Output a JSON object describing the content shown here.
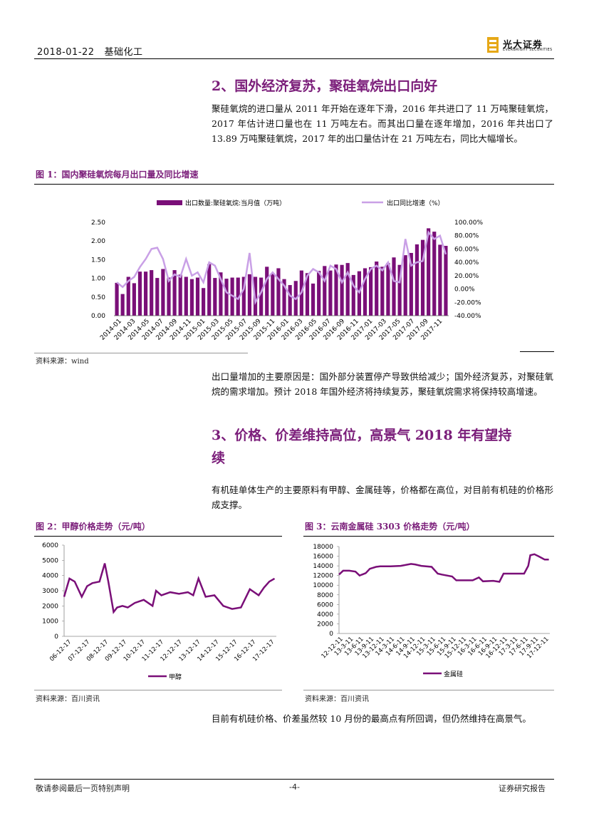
{
  "header": {
    "date": "2018-01-22",
    "sector": "基础化工",
    "logo_cn": "光大证券",
    "logo_en": "EVERBRIGHT SECURITIES"
  },
  "section2": {
    "title": "2、国外经济复苏，聚硅氧烷出口向好",
    "para": "聚硅氧烷的进口量从 2011 年开始在逐年下滑，2016 年共进口了 11 万吨聚硅氧烷，2017 年估计进口量也在 11 万吨左右。而其出口量在逐年增加，2016 年共出口了 13.89 万吨聚硅氧烷，2017 年的出口量估计在 21 万吨左右，同比大幅增长。"
  },
  "fig1": {
    "title": "图 1：国内聚硅氧烷每月出口量及同比增速",
    "source": "资料来源：wind"
  },
  "para_after_fig1": "出口量增加的主要原因是：国外部分装置停产导致供给减少；国外经济复苏，对聚硅氧烷的需求增加。预计 2018 年国外经济将持续复苏，聚硅氧烷需求将保持较高增速。",
  "section3": {
    "title_line1": "3、价格、价差维持高位，高景气 2018 年有望持",
    "title_line2": "续",
    "para": "有机硅单体生产的主要原料有甲醇、金属硅等，价格都在高位，对目前有机硅的价格形成支撑。"
  },
  "fig2": {
    "title": "图 2：甲醇价格走势（元/吨）",
    "source": "资料来源：百川资讯"
  },
  "fig3": {
    "title": "图 3：云南金属硅 3303 价格走势（元/吨）",
    "source": "资料来源：百川资讯"
  },
  "para_end": "目前有机硅价格、价差虽然较 10 月份的最高点有所回调，但仍然维持在高景气。",
  "footer": {
    "left": "敬请参阅最后一页特别声明",
    "center": "-4-",
    "right": "证券研究报告"
  },
  "colors": {
    "accent": "#7b1e7a",
    "bar": "#7a0f78",
    "line": "#c9a0e6"
  },
  "chart_data": [
    {
      "type": "bar+line",
      "legend": [
        "出口数量:聚硅氧烷:当月值（万吨）",
        "出口同比增速（%）"
      ],
      "left_ylim": [
        0,
        2.5
      ],
      "left_ticks": [
        "0.00",
        "0.50",
        "1.00",
        "1.50",
        "2.00",
        "2.50"
      ],
      "right_ylim": [
        -40,
        100
      ],
      "right_ticks": [
        "-40.00%",
        "-20.00%",
        "0.00%",
        "20.00%",
        "40.00%",
        "60.00%",
        "80.00%",
        "100.00%"
      ],
      "x_tick_labels": [
        "2014-01",
        "2014-03",
        "2014-05",
        "2014-07",
        "2014-09",
        "2014-11",
        "2015-01",
        "2015-03",
        "2015-05",
        "2015-07",
        "2015-09",
        "2015-11",
        "2016-01",
        "2016-03",
        "2016-05",
        "2016-07",
        "2016-09",
        "2016-11",
        "2017-01",
        "2017-03",
        "2017-05",
        "2017-07",
        "2017-09",
        "2017-11"
      ],
      "bar_values": [
        0.88,
        0.58,
        1.04,
        0.87,
        1.18,
        1.18,
        1.22,
        1.01,
        1.25,
        1.02,
        1.22,
        1.1,
        1.04,
        0.98,
        1.02,
        0.74,
        1.38,
        1.01,
        1.16,
        0.99,
        1.02,
        1.02,
        1.04,
        1.11,
        1.04,
        1.02,
        1.31,
        1.14,
        1.27,
        0.98,
        0.82,
        0.93,
        1.21,
        1.14,
        0.86,
        1.2,
        1.33,
        1.21,
        1.37,
        1.36,
        1.41,
        1.09,
        1.19,
        1.27,
        1.3,
        1.45,
        1.31,
        1.41,
        1.56,
        1.36,
        1.62,
        1.68,
        1.91,
        2.03,
        2.34,
        2.25,
        1.9,
        1.87
      ],
      "line_values": [
        10,
        3,
        12,
        18,
        33,
        45,
        60,
        62,
        45,
        12,
        22,
        18,
        45,
        20,
        25,
        10,
        40,
        35,
        15,
        -5,
        -10,
        -15,
        0,
        54,
        -20,
        -5,
        15,
        25,
        15,
        5,
        -10,
        -15,
        -5,
        20,
        30,
        25,
        12,
        35,
        30,
        10,
        25,
        5,
        -5,
        15,
        30,
        35,
        28,
        40,
        12,
        10,
        75,
        35,
        40,
        42,
        85,
        75,
        80,
        52
      ],
      "line_axis": "right"
    },
    {
      "type": "line",
      "title": "图 2：甲醇价格走势（元/吨）",
      "legend": [
        "甲醇"
      ],
      "ylim": [
        0,
        6000
      ],
      "y_ticks": [
        "0",
        "1000",
        "2000",
        "3000",
        "4000",
        "5000",
        "6000"
      ],
      "x_tick_labels": [
        "06-12-17",
        "07-12-17",
        "08-12-17",
        "09-12-17",
        "10-12-17",
        "11-12-17",
        "12-12-17",
        "13-12-17",
        "14-12-17",
        "15-12-17",
        "16-12-17",
        "17-12-17"
      ],
      "x": [
        0,
        0.3,
        0.6,
        1,
        1.3,
        1.6,
        2,
        2.3,
        2.5,
        2.8,
        3,
        3.3,
        3.6,
        4,
        4.5,
        5,
        5.2,
        5.5,
        6,
        6.5,
        7,
        7.3,
        7.6,
        8,
        8.5,
        9,
        9.5,
        10,
        10.5,
        11,
        11.3,
        11.6,
        11.9
      ],
      "values": [
        2600,
        3800,
        3600,
        2600,
        3300,
        3500,
        3600,
        4800,
        3600,
        1600,
        1900,
        2000,
        1900,
        2200,
        2400,
        2000,
        3000,
        2700,
        2900,
        2800,
        2900,
        2700,
        3800,
        2600,
        2700,
        2000,
        1800,
        1900,
        3100,
        2700,
        3200,
        3600,
        3800
      ]
    },
    {
      "type": "line",
      "title": "图 3：云南金属硅 3303 价格走势（元/吨）",
      "legend": [
        "金属硅"
      ],
      "ylim": [
        0,
        18000
      ],
      "y_ticks": [
        "0",
        "2000",
        "4000",
        "6000",
        "8000",
        "10000",
        "12000",
        "14000",
        "16000",
        "18000"
      ],
      "x_tick_labels": [
        "12-12-11",
        "13-3-11",
        "13-6-11",
        "13-9-11",
        "13-12-11",
        "14-3-11",
        "14-6-11",
        "14-9-11",
        "14-12-11",
        "15-3-11",
        "15-6-11",
        "15-9-11",
        "15-12-11",
        "16-3-11",
        "16-6-11",
        "16-9-11",
        "16-12-11",
        "17-3-11",
        "17-6-11",
        "17-9-11",
        "17-12-11"
      ],
      "x": [
        0,
        0.4,
        1,
        1.6,
        2,
        2.6,
        3,
        3.6,
        4,
        5,
        6,
        7,
        7.4,
        8,
        9,
        9.6,
        10,
        11,
        11.4,
        12,
        13,
        13.6,
        14,
        15,
        15.6,
        16,
        16.6,
        17,
        18,
        18.4,
        18.6,
        19,
        19.4,
        20,
        20.4
      ],
      "values": [
        12200,
        13000,
        13000,
        12800,
        12000,
        12500,
        13400,
        13800,
        13900,
        13900,
        14000,
        14400,
        14300,
        14000,
        13800,
        12400,
        12200,
        11800,
        11000,
        11000,
        11000,
        11600,
        10800,
        10900,
        10700,
        12400,
        12400,
        12400,
        12400,
        14000,
        16200,
        16400,
        16000,
        15300,
        15300
      ]
    }
  ]
}
